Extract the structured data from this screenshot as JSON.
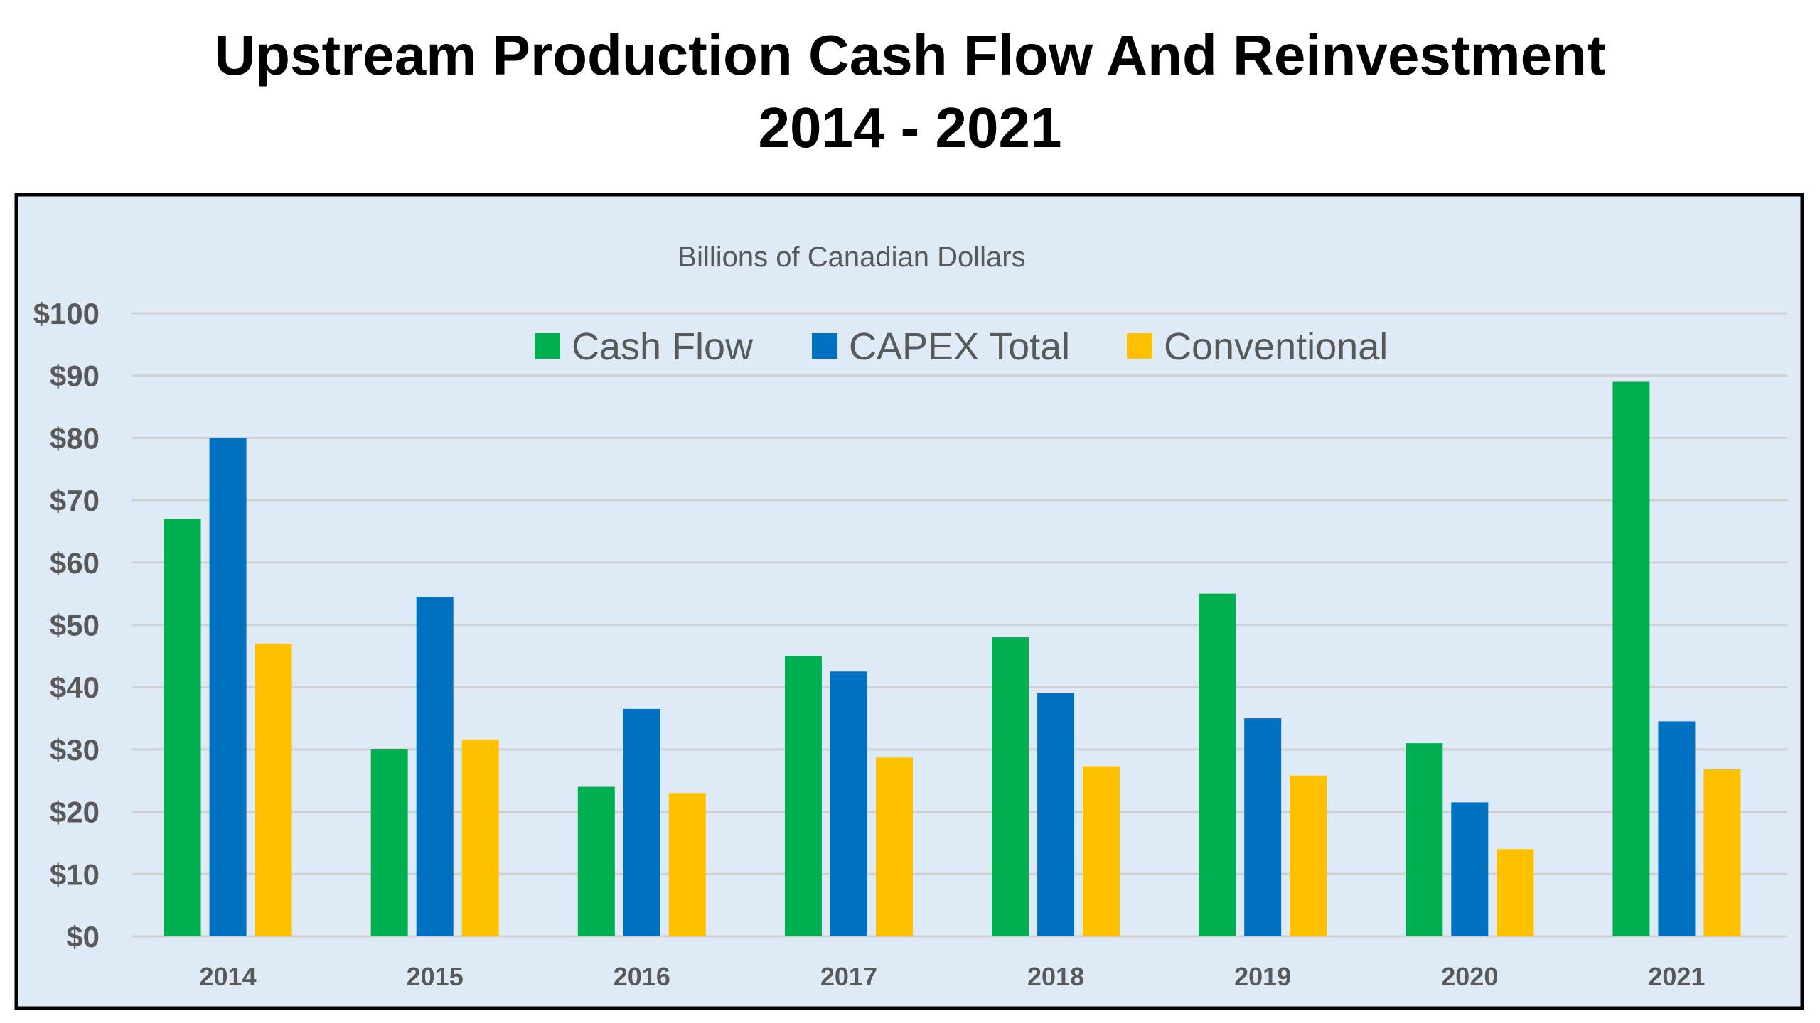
{
  "chart_data": {
    "type": "bar",
    "title": "Upstream Production Cash Flow And Reinvestment",
    "subtitle": "2014 - 2021",
    "units_label": "Billions of Canadian Dollars",
    "xlabel": "",
    "ylabel": "",
    "ylim": [
      0,
      100
    ],
    "yticks": [
      0,
      10,
      20,
      30,
      40,
      50,
      60,
      70,
      80,
      90,
      100
    ],
    "ytick_labels": [
      "$0",
      "$10",
      "$20",
      "$30",
      "$40",
      "$50",
      "$60",
      "$70",
      "$80",
      "$90",
      "$100"
    ],
    "grid": true,
    "legend_position": "top-center",
    "categories": [
      "2014",
      "2015",
      "2016",
      "2017",
      "2018",
      "2019",
      "2020",
      "2021"
    ],
    "series": [
      {
        "name": "Cash Flow",
        "color": "#00B050",
        "values": [
          67,
          30,
          24,
          45,
          48,
          55,
          31,
          89
        ]
      },
      {
        "name": "CAPEX Total",
        "color": "#0070C0",
        "values": [
          80,
          54.5,
          36.5,
          42.5,
          39,
          35,
          21.5,
          34.5
        ]
      },
      {
        "name": "Conventional",
        "color": "#FFC000",
        "values": [
          47,
          31.6,
          23,
          28.7,
          27.3,
          25.8,
          14,
          26.8
        ]
      }
    ]
  }
}
